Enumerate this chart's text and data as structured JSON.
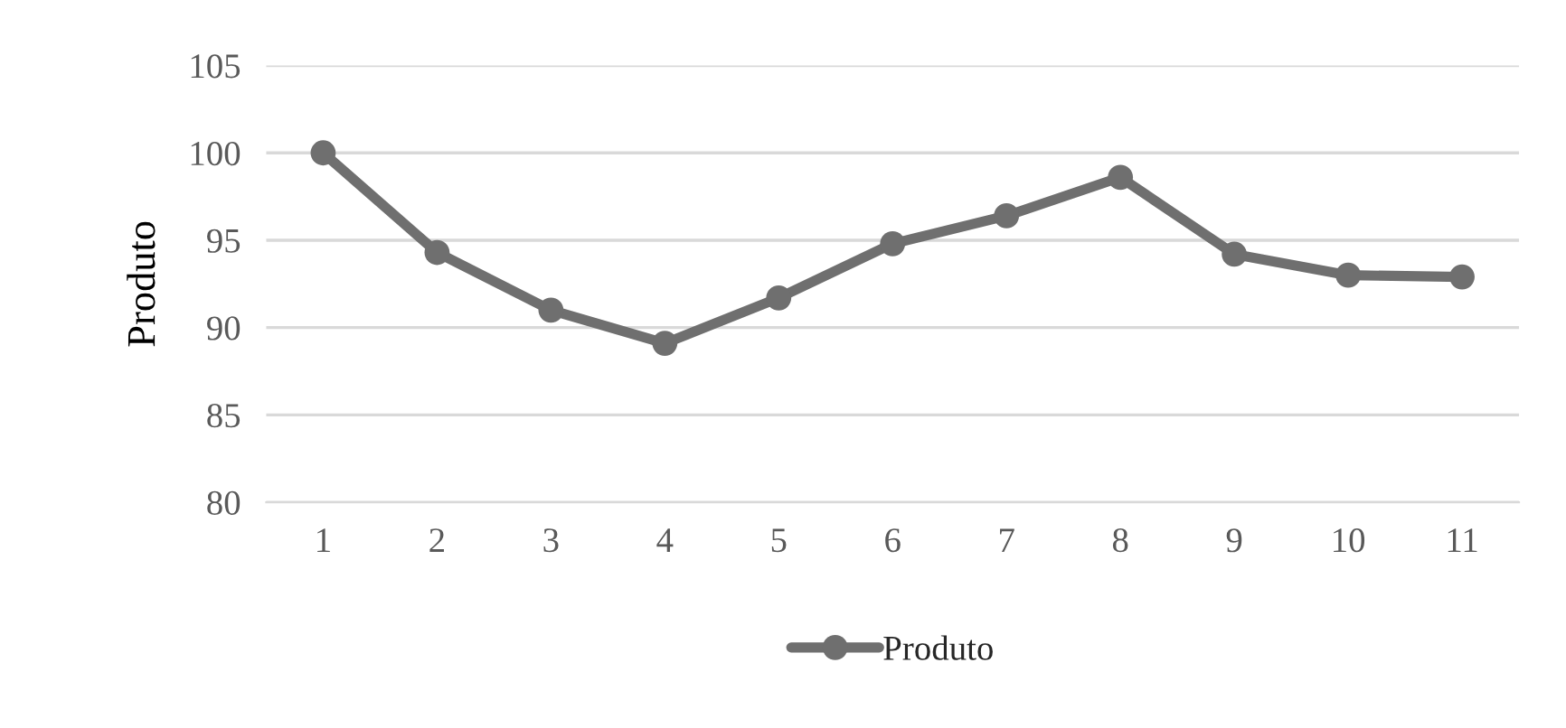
{
  "chart_data": {
    "type": "line",
    "ylabel": "Produto",
    "categories": [
      "1",
      "2",
      "3",
      "4",
      "5",
      "6",
      "7",
      "8",
      "9",
      "10",
      "11"
    ],
    "series": [
      {
        "name": "Produto",
        "color": "#6f6f6f",
        "values": [
          100,
          94.3,
          91.0,
          89.1,
          91.7,
          94.8,
          96.4,
          98.6,
          94.2,
          93.0,
          92.9
        ]
      }
    ],
    "ylim": [
      80,
      105
    ],
    "yticks": [
      80,
      85,
      90,
      95,
      100,
      105
    ],
    "grid": "y",
    "legend": "bottom",
    "marker": "circle",
    "line_style": "solid"
  }
}
